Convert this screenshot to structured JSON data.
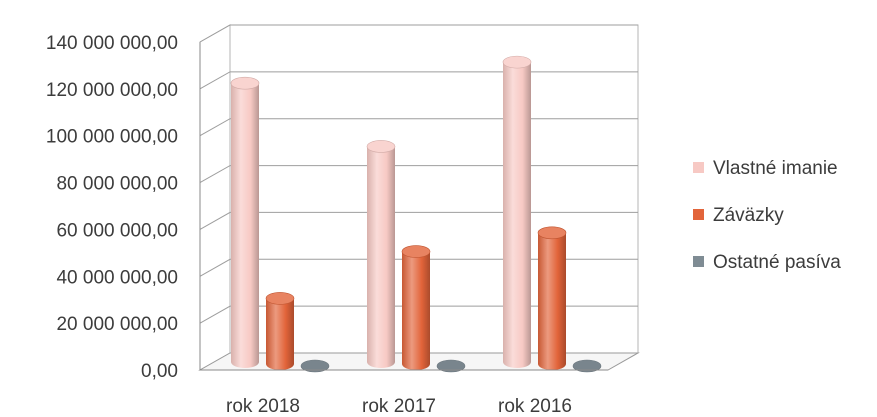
{
  "chart_data": {
    "type": "bar",
    "variant": "3d-cylinder-clustered",
    "categories": [
      "rok 2018",
      "rok 2017",
      "rok 2016"
    ],
    "series": [
      {
        "name": "Vlastné imanie",
        "values": [
          119000000,
          92000000,
          128000000
        ],
        "color": "#f7c9c4"
      },
      {
        "name": "Záväzky",
        "values": [
          28000000,
          48000000,
          56000000
        ],
        "color": "#e2643a"
      },
      {
        "name": "Ostatné pasíva",
        "values": [
          0,
          0,
          0
        ],
        "color": "#7f8c94"
      }
    ],
    "yticks": [
      "0,00",
      "20 000 000,00",
      "40 000 000,00",
      "60 000 000,00",
      "80 000 000,00",
      "100 000 000,00",
      "120 000 000,00",
      "140 000 000,00"
    ],
    "ylim": [
      0,
      140000000
    ],
    "grid": true,
    "legend_position": "right"
  }
}
